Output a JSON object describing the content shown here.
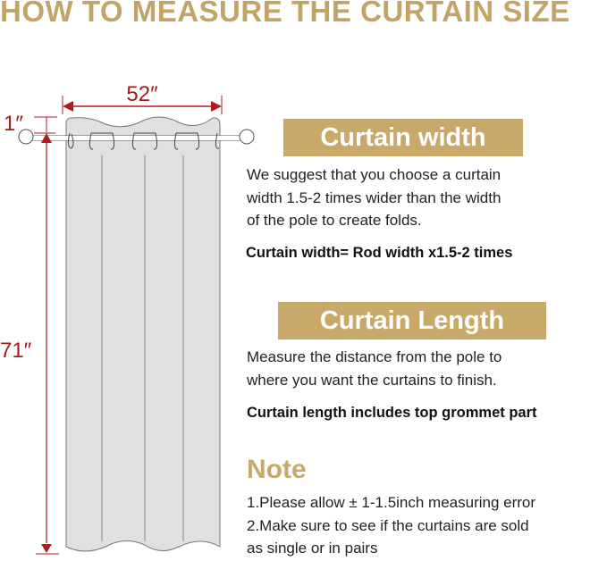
{
  "title": "HOW TO MEASURE THE CURTAIN SIZE",
  "diagram": {
    "width_label": "52″",
    "height_label": "71″",
    "top_label": "1″",
    "accent_color": "#b01c1c",
    "curtain_color": "#e0e0e0"
  },
  "width_section": {
    "heading": "Curtain width",
    "lines": [
      "We suggest that you choose a curtain",
      "width 1.5-2 times wider than the width",
      "of the pole to create folds."
    ],
    "formula": "Curtain width= Rod width x1.5-2 times"
  },
  "length_section": {
    "heading": "Curtain Length",
    "lines": [
      "Measure the distance from the pole to",
      "where you want the curtains to finish."
    ],
    "formula": "Curtain length includes top grommet part"
  },
  "note": {
    "heading": "Note",
    "lines": [
      "1.Please allow ± 1-1.5inch measuring error",
      "2.Make sure to see if the curtains are sold",
      "as single or in pairs"
    ]
  },
  "colors": {
    "gold": "#c9a96a"
  }
}
